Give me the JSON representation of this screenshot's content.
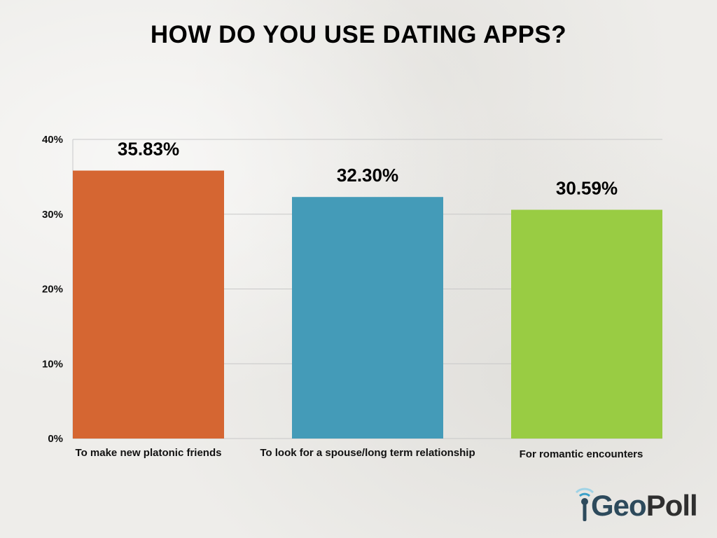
{
  "chart_data": {
    "type": "bar",
    "title": "HOW DO YOU USE DATING APPS?",
    "categories": [
      "To make new platonic friends",
      "To look for a spouse/long term relationship",
      "For romantic encounters"
    ],
    "values": [
      35.83,
      32.3,
      30.59
    ],
    "value_labels": [
      "35.83%",
      "32.30%",
      "30.59%"
    ],
    "colors": [
      "#d56632",
      "#449bb8",
      "#99cc43"
    ],
    "ylim": [
      0,
      40
    ],
    "yticks": [
      0,
      10,
      20,
      30,
      40
    ],
    "ytick_labels": [
      "0%",
      "10%",
      "20%",
      "30%",
      "40%"
    ],
    "grid": true,
    "legend": "none"
  },
  "logo": {
    "brand_a": "Geo",
    "brand_b": "Poll",
    "colors": {
      "geo": "#2d4a5c",
      "poll": "#2f2f2f",
      "signal": "#3aa0c8"
    },
    "icon": "signal-antenna-icon"
  }
}
